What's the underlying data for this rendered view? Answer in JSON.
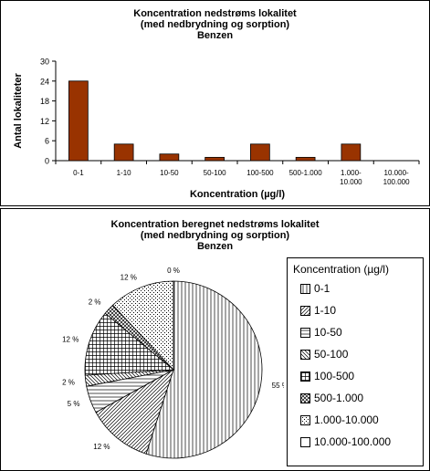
{
  "chart_data": [
    {
      "type": "bar",
      "title": "Koncentration nedstrøms lokalitet",
      "subtitle": "(med nedbrydning og sorption)",
      "subtitle2": "Benzen",
      "xlabel": "Koncentration (µg/l)",
      "ylabel": "Antal lokaliteter",
      "categories": [
        "0-1",
        "1-10",
        "10-50",
        "50-100",
        "100-500",
        "500-1.000",
        "1.000-10.000",
        "10.000-100.000"
      ],
      "category_lines": [
        [
          "0-1"
        ],
        [
          "1-10"
        ],
        [
          "10-50"
        ],
        [
          "50-100"
        ],
        [
          "100-500"
        ],
        [
          "500-1.000"
        ],
        [
          "1.000-",
          "10.000"
        ],
        [
          "10.000-",
          "100.000"
        ]
      ],
      "values": [
        24,
        5,
        2,
        1,
        5,
        1,
        5,
        0
      ],
      "ylim": [
        0,
        30
      ],
      "yticks": [
        0,
        6,
        12,
        18,
        24,
        30
      ],
      "bar_color": "#993300",
      "grid": false
    },
    {
      "type": "pie",
      "title": "Koncentration beregnet nedstrøms lokalitet",
      "subtitle": "(med nedbrydning og sorption)",
      "subtitle2": "Benzen",
      "legend_title": "Koncentration (µg/l)",
      "legend_position": "right",
      "labels": [
        "0-1",
        "1-10",
        "10-50",
        "50-100",
        "100-500",
        "500-1.000",
        "1.000-10.000",
        "10.000-100.000"
      ],
      "values": [
        55,
        12,
        5,
        2,
        12,
        2,
        12,
        0
      ],
      "value_labels": [
        "55 %",
        "12 %",
        "5 %",
        "2 %",
        "12 %",
        "2 %",
        "12 %",
        "0 %"
      ],
      "patterns": [
        "vertical-lines",
        "diagonal-up",
        "horizontal-lines",
        "diagonal-down",
        "grid",
        "diagonal-cross",
        "dots",
        "solid-white"
      ]
    }
  ]
}
